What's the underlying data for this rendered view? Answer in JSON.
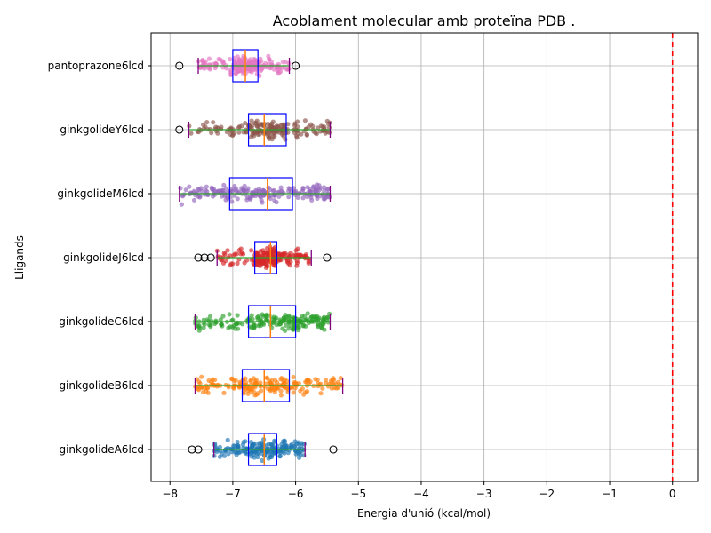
{
  "chart_data": {
    "type": "box",
    "title": "Acoblament molecular amb proteïna PDB .",
    "xlabel": "Energia d'unió (kcal/mol)",
    "ylabel": "Lligands",
    "xlim": [
      -8.3,
      0.4
    ],
    "xticks": [
      -8,
      -7,
      -6,
      -5,
      -4,
      -3,
      -2,
      -1,
      0
    ],
    "xtick_labels": [
      "−8",
      "−7",
      "−6",
      "−5",
      "−4",
      "−3",
      "−2",
      "−1",
      "0"
    ],
    "grid": true,
    "reference_line": {
      "x": 0,
      "color": "#ff0000",
      "style": "dashed"
    },
    "box_color": "#0000ff",
    "median_color": "#ff7f0e",
    "series": [
      {
        "name": "ginkgolideA6lcd",
        "color": "#1f77b4",
        "whisker_low": -7.3,
        "q1": -6.75,
        "median": -6.5,
        "q3": -6.3,
        "whisker_high": -5.85,
        "outliers": [
          -7.65,
          -7.55,
          -5.4
        ]
      },
      {
        "name": "ginkgolideB6lcd",
        "color": "#ff7f0e",
        "whisker_low": -7.6,
        "q1": -6.85,
        "median": -6.5,
        "q3": -6.1,
        "whisker_high": -5.25,
        "outliers": []
      },
      {
        "name": "ginkgolideC6lcd",
        "color": "#2ca02c",
        "whisker_low": -7.6,
        "q1": -6.75,
        "median": -6.4,
        "q3": -6.0,
        "whisker_high": -5.45,
        "outliers": []
      },
      {
        "name": "ginkgolideJ6lcd",
        "color": "#d62728",
        "whisker_low": -7.25,
        "q1": -6.65,
        "median": -6.4,
        "q3": -6.3,
        "whisker_high": -5.75,
        "outliers": [
          -7.55,
          -7.45,
          -7.35,
          -5.5
        ]
      },
      {
        "name": "ginkgolideM6lcd",
        "color": "#9467bd",
        "whisker_low": -7.85,
        "q1": -7.05,
        "median": -6.45,
        "q3": -6.05,
        "whisker_high": -5.45,
        "outliers": []
      },
      {
        "name": "ginkgolideY6lcd",
        "color": "#8c564b",
        "whisker_low": -7.7,
        "q1": -6.75,
        "median": -6.5,
        "q3": -6.15,
        "whisker_high": -5.45,
        "outliers": [
          -7.85
        ]
      },
      {
        "name": "pantoprazone6lcd",
        "color": "#e377c2",
        "whisker_low": -7.55,
        "q1": -7.0,
        "median": -6.8,
        "q3": -6.6,
        "whisker_high": -6.1,
        "outliers": [
          -7.85,
          -6.0
        ]
      }
    ]
  }
}
